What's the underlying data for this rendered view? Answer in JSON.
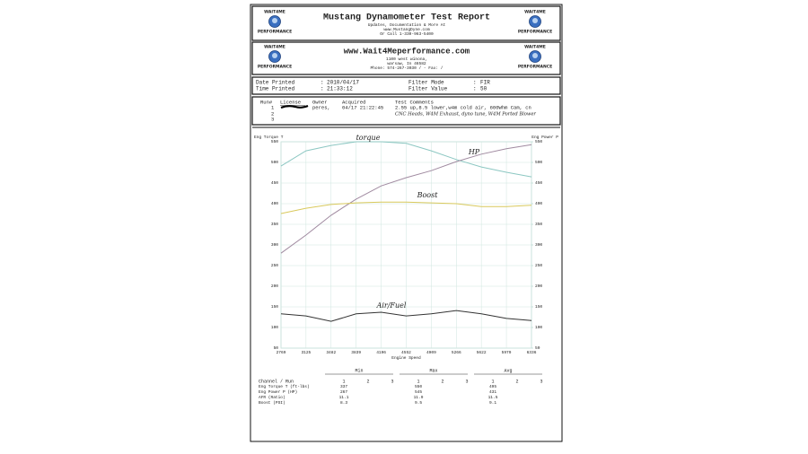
{
  "header": {
    "title": "Mustang Dynamometer Test Report",
    "lines": [
      "Updates, Documentation & More At",
      "www.MustangDyne.com",
      "Or Call 1-330-963-5400"
    ]
  },
  "logo": {
    "top": "WAIT4ME",
    "bottom": "PERFORMANCE"
  },
  "shop": {
    "url": "www.Wait4Meperformance.com",
    "lines": [
      "1100 west winona,",
      "warsaw, In  46582",
      "Phone: 574-267-3030 /  - Fax: /"
    ]
  },
  "info": {
    "date_printed": {
      "label": "Date Printed",
      "value": "2010/04/17"
    },
    "time_printed": {
      "label": "Time Printed",
      "value": "21:33:12"
    },
    "filter_mode": {
      "label": "Filter Mode",
      "value": "FIR"
    },
    "filter_value": {
      "label": "Filter Value",
      "value": "50"
    }
  },
  "runs": {
    "columns": [
      "Run#",
      "License",
      "Owner",
      "Acquired",
      "Test Comments"
    ],
    "rows": [
      {
        "run": "1",
        "owner": "peres,",
        "acquired": "04/17 21:22:45",
        "comment": "2.55 up,8.5 lower,w4m cold air, 600Whm Cam, cn",
        "note": "CNC Heads, W4M Exhaust, dyno tune, W4M Ported Blower"
      },
      {
        "run": "2"
      },
      {
        "run": "3"
      }
    ]
  },
  "chart": {
    "type": "line",
    "x_label": "Engine Speed",
    "y_label": "Eng Torque T",
    "y2_label": "Eng Power P",
    "x": [
      2769,
      3125,
      3482,
      3839,
      4196,
      4552,
      4909,
      5266,
      5622,
      5979,
      6336
    ],
    "xlim": [
      2769,
      6336
    ],
    "xticks": [
      2769,
      3125,
      3482,
      3839,
      4196,
      4552,
      4909,
      5266,
      5622,
      5979,
      6336
    ],
    "ylim": [
      50,
      550
    ],
    "yticks": [
      50,
      100,
      150,
      200,
      250,
      300,
      350,
      400,
      450,
      500,
      550
    ],
    "y2lim": [
      50,
      550
    ],
    "y2ticks": [
      50,
      100,
      150,
      200,
      250,
      300,
      350,
      400,
      450,
      500,
      550
    ],
    "grid": true,
    "series": [
      {
        "name": "torque",
        "color": "#8cc7c2",
        "values": [
          491,
          528,
          541,
          550,
          550,
          546,
          528,
          507,
          489,
          476,
          465
        ]
      },
      {
        "name": "HP",
        "color": "#a08aa0",
        "axis": "y2",
        "values": [
          280,
          324,
          372,
          411,
          443,
          463,
          480,
          502,
          520,
          533,
          543
        ]
      },
      {
        "name": "Boost",
        "color": "#d9c95c",
        "values": [
          376,
          389,
          398,
          402,
          404,
          404,
          402,
          400,
          393,
          393,
          396
        ]
      },
      {
        "name": "Air/Fuel",
        "color": "#333333",
        "values": [
          133,
          128,
          115,
          133,
          137,
          128,
          133,
          141,
          133,
          122,
          117
        ]
      }
    ]
  },
  "summary": {
    "groups": [
      "Min",
      "Max",
      "Avg"
    ],
    "runs": [
      "1",
      "2",
      "3"
    ],
    "header_label": "Channel / Run",
    "rows": [
      {
        "label": "Eng Torque T (ft-lbs)",
        "color": "#9fcfca",
        "values": [
          "337",
          "550",
          "495"
        ]
      },
      {
        "label": "Eng Power P (HP)",
        "color": "#555555",
        "values": [
          "267",
          "545",
          "431"
        ]
      },
      {
        "label": "AFR (Ratio)",
        "color": "#222222",
        "values": [
          "11.1",
          "11.9",
          "11.5"
        ]
      },
      {
        "label": "Boost (PSI)",
        "color": "#d9c95c",
        "values": [
          "8.3",
          "9.5",
          "9.1"
        ]
      }
    ]
  }
}
